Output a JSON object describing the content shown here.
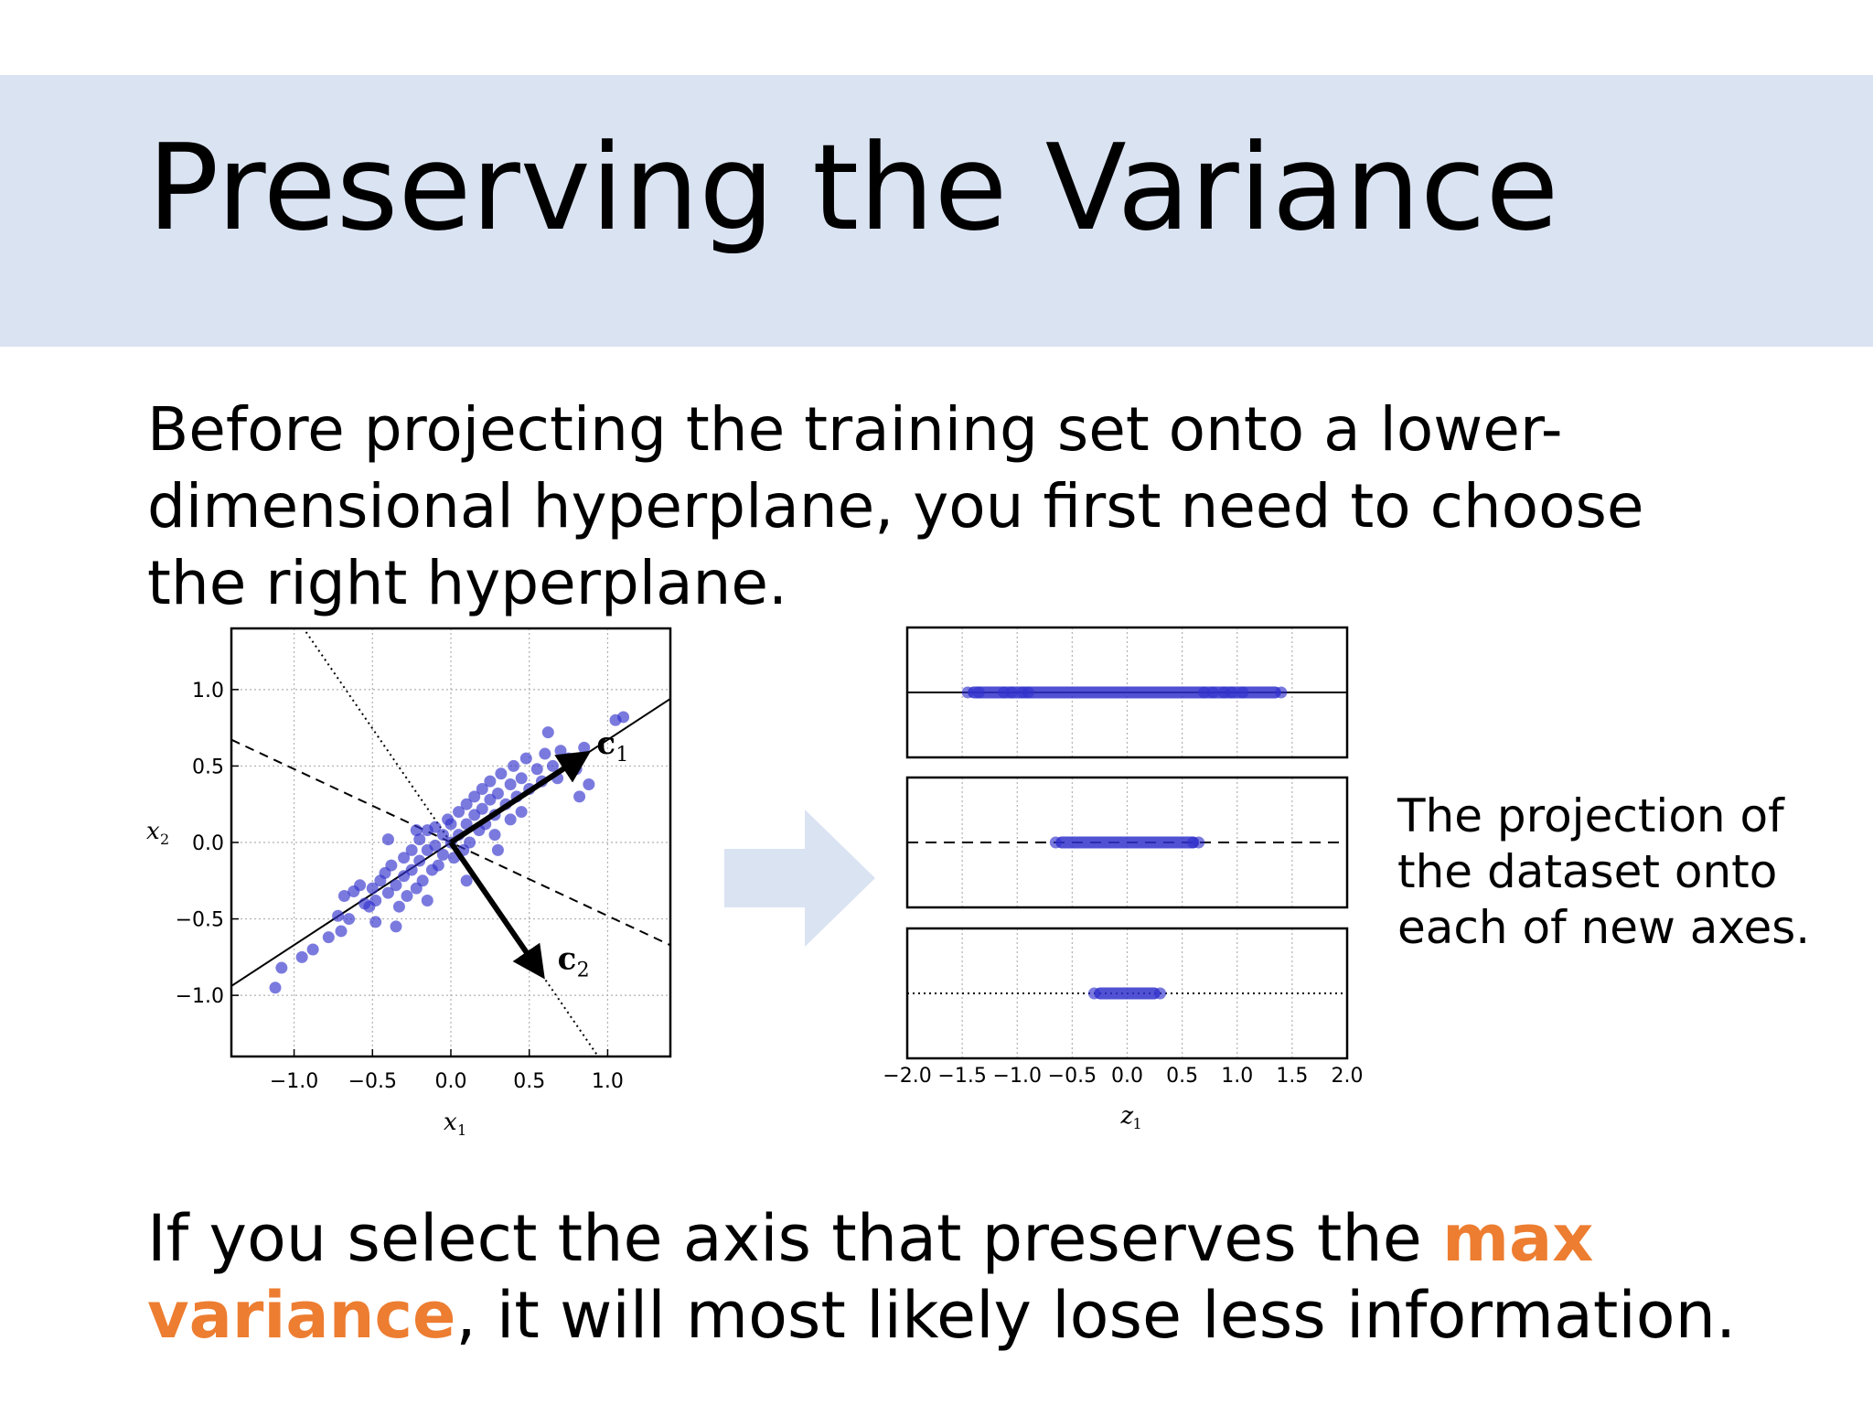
{
  "slide": {
    "title": "Preserving the Variance",
    "intro_lines": [
      "Before projecting the training set onto a lower-",
      "dimensional hyperplane, you first need to choose",
      "the right hyperplane."
    ],
    "caption_lines": [
      "The projection of",
      "the dataset onto",
      "each of new axes."
    ],
    "conclusion": {
      "part1": "If you select the axis that preserves the ",
      "highlight1": "max",
      "highlight2": "variance",
      "part2": ", it will most likely lose less information."
    },
    "highlight_color": "#ed7d31",
    "band_color": "#dae3f2",
    "arrow_color": "#dae3f2"
  },
  "chart_data": [
    {
      "type": "scatter",
      "xlabel": "x1",
      "ylabel": "x2",
      "xlim": [
        -1.4,
        1.4
      ],
      "ylim": [
        -1.4,
        1.4
      ],
      "xticks": [
        "−1.0",
        "−0.5",
        "0.0",
        "0.5",
        "1.0"
      ],
      "yticks": [
        "1.0",
        "0.5",
        "0.0",
        "−0.5",
        "−1.0"
      ],
      "grid": true,
      "marker_color": "#3333cc",
      "points": [
        [
          -1.08,
          -0.82
        ],
        [
          -1.12,
          -0.95
        ],
        [
          -0.95,
          -0.75
        ],
        [
          -0.88,
          -0.7
        ],
        [
          -0.78,
          -0.62
        ],
        [
          -0.7,
          -0.58
        ],
        [
          -0.72,
          -0.48
        ],
        [
          -0.65,
          -0.5
        ],
        [
          -0.62,
          -0.32
        ],
        [
          -0.68,
          -0.35
        ],
        [
          -0.55,
          -0.4
        ],
        [
          -0.58,
          -0.28
        ],
        [
          -0.5,
          -0.3
        ],
        [
          -0.52,
          -0.42
        ],
        [
          -0.45,
          -0.25
        ],
        [
          -0.48,
          -0.38
        ],
        [
          -0.42,
          -0.2
        ],
        [
          -0.4,
          -0.33
        ],
        [
          -0.38,
          -0.15
        ],
        [
          -0.35,
          -0.28
        ],
        [
          -0.33,
          -0.42
        ],
        [
          -0.3,
          -0.1
        ],
        [
          -0.3,
          -0.22
        ],
        [
          -0.28,
          -0.35
        ],
        [
          -0.25,
          -0.05
        ],
        [
          -0.25,
          -0.18
        ],
        [
          -0.22,
          -0.3
        ],
        [
          -0.2,
          0.02
        ],
        [
          -0.2,
          -0.12
        ],
        [
          -0.18,
          -0.25
        ],
        [
          -0.15,
          0.08
        ],
        [
          -0.15,
          -0.05
        ],
        [
          -0.12,
          -0.18
        ],
        [
          -0.1,
          0.1
        ],
        [
          -0.1,
          -0.02
        ],
        [
          -0.08,
          -0.15
        ],
        [
          -0.05,
          0.05
        ],
        [
          -0.05,
          -0.08
        ],
        [
          -0.02,
          0.15
        ],
        [
          0.0,
          0.0
        ],
        [
          0.0,
          0.12
        ],
        [
          0.02,
          -0.1
        ],
        [
          0.05,
          0.2
        ],
        [
          0.05,
          0.05
        ],
        [
          0.08,
          -0.05
        ],
        [
          0.1,
          0.25
        ],
        [
          0.1,
          0.12
        ],
        [
          0.12,
          0.0
        ],
        [
          0.15,
          0.3
        ],
        [
          0.15,
          0.18
        ],
        [
          0.18,
          0.08
        ],
        [
          0.2,
          0.35
        ],
        [
          0.2,
          0.22
        ],
        [
          0.22,
          0.12
        ],
        [
          0.25,
          0.28
        ],
        [
          0.25,
          0.4
        ],
        [
          0.28,
          0.18
        ],
        [
          0.3,
          0.32
        ],
        [
          0.32,
          0.45
        ],
        [
          0.35,
          0.25
        ],
        [
          0.38,
          0.38
        ],
        [
          0.4,
          0.5
        ],
        [
          0.42,
          0.3
        ],
        [
          0.45,
          0.42
        ],
        [
          0.48,
          0.55
        ],
        [
          0.5,
          0.35
        ],
        [
          0.55,
          0.48
        ],
        [
          0.58,
          0.4
        ],
        [
          0.6,
          0.58
        ],
        [
          0.65,
          0.5
        ],
        [
          0.68,
          0.42
        ],
        [
          0.7,
          0.6
        ],
        [
          0.75,
          0.55
        ],
        [
          0.8,
          0.48
        ],
        [
          0.85,
          0.62
        ],
        [
          0.88,
          0.38
        ],
        [
          0.82,
          0.3
        ],
        [
          1.05,
          0.8
        ],
        [
          1.1,
          0.82
        ],
        [
          0.62,
          0.72
        ],
        [
          -0.4,
          0.02
        ],
        [
          -0.22,
          0.08
        ],
        [
          0.3,
          -0.05
        ],
        [
          0.1,
          -0.25
        ],
        [
          -0.35,
          -0.55
        ],
        [
          -0.48,
          -0.52
        ],
        [
          0.28,
          0.05
        ],
        [
          0.45,
          0.2
        ],
        [
          -0.15,
          -0.38
        ],
        [
          0.38,
          0.15
        ]
      ],
      "annotations": [
        "c1",
        "c2"
      ],
      "vectors": [
        {
          "label": "c1",
          "x": 0.85,
          "y": 0.57
        },
        {
          "label": "c2",
          "x": 0.57,
          "y": -0.85
        }
      ],
      "lines": [
        {
          "style": "solid",
          "slope": 0.671
        },
        {
          "style": "dashed",
          "slope": -0.48
        },
        {
          "style": "dotted",
          "slope": -1.49
        }
      ]
    },
    {
      "type": "scatter",
      "xlabel": "z1",
      "xlim": [
        -2.0,
        2.0
      ],
      "xticks": [
        "−2.0",
        "−1.5",
        "−1.0",
        "−0.5",
        "0.0",
        "0.5",
        "1.0",
        "1.5",
        "2.0"
      ],
      "grid": true,
      "panels": [
        {
          "style": "solid",
          "range": [
            -1.45,
            1.4
          ],
          "values": [
            -1.45,
            -1.35,
            -1.12,
            -1.05,
            -0.95,
            -0.9,
            0.7,
            0.78,
            0.88,
            0.95,
            1.05,
            1.4
          ]
        },
        {
          "style": "dashed",
          "range": [
            -0.65,
            0.65
          ],
          "values": [
            -0.65,
            0.6,
            0.65
          ]
        },
        {
          "style": "dotted",
          "range": [
            -0.3,
            0.3
          ],
          "values": [
            -0.3,
            0.3
          ]
        }
      ]
    }
  ]
}
